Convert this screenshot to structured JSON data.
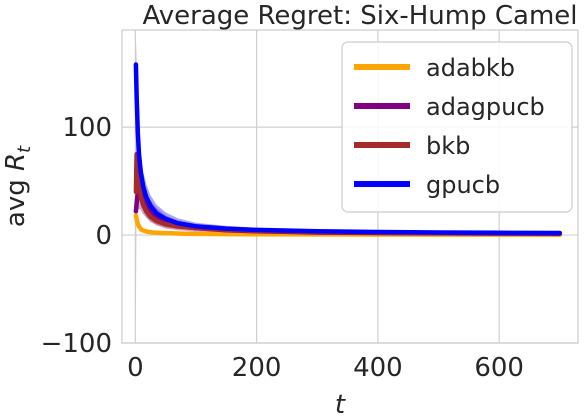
{
  "chart_data": {
    "type": "line",
    "title": "Average Regret: Six-Hump Camel",
    "xlabel": "t",
    "ylabel": "avg R_t",
    "xlim": [
      -22,
      730
    ],
    "ylim": [
      -100,
      190
    ],
    "xticks": [
      0,
      200,
      400,
      600
    ],
    "yticks": [
      -100,
      0,
      100
    ],
    "xtick_labels": [
      "0",
      "200",
      "400",
      "600"
    ],
    "ytick_labels": [
      "−100",
      "0",
      "100"
    ],
    "grid": true,
    "legend_position": "top-right",
    "series": [
      {
        "name": "adabkb",
        "color": "#FFA500",
        "x": [
          1,
          3,
          6,
          10,
          15,
          20,
          30,
          40,
          60,
          80,
          100,
          150,
          200,
          300,
          400,
          500,
          600,
          700
        ],
        "y": [
          18,
          12,
          8,
          5,
          4,
          3,
          2.4,
          2,
          1.6,
          1.3,
          1.1,
          0.9,
          0.8,
          0.6,
          0.5,
          0.45,
          0.4,
          0.35
        ],
        "band": [
          3,
          2,
          1.5,
          1,
          0.8,
          0.6,
          0.5,
          0.4,
          0.3,
          0.3,
          0.2,
          0.2,
          0.2,
          0.2,
          0.1,
          0.1,
          0.1,
          0.1
        ]
      },
      {
        "name": "adagpucb",
        "color": "#800080",
        "x": [
          1,
          3,
          5,
          8,
          12,
          18,
          25,
          35,
          50,
          70,
          100,
          150,
          200,
          300,
          400,
          500,
          600,
          700
        ],
        "y": [
          22,
          35,
          42,
          40,
          34,
          28,
          22,
          17,
          12,
          9,
          6.5,
          4.5,
          3.5,
          2.4,
          1.9,
          1.6,
          1.4,
          1.2
        ],
        "band": [
          15,
          15,
          18,
          16,
          14,
          12,
          10,
          8,
          6,
          4.5,
          3.5,
          2.5,
          2,
          1.2,
          1,
          0.8,
          0.7,
          0.6
        ]
      },
      {
        "name": "bkb",
        "color": "#A52A2A",
        "x": [
          1,
          2,
          4,
          6,
          9,
          13,
          18,
          25,
          35,
          50,
          70,
          100,
          150,
          200,
          300,
          400,
          500,
          600,
          700
        ],
        "y": [
          40,
          75,
          55,
          45,
          35,
          28,
          22,
          17,
          13,
          10,
          8,
          6.5,
          5,
          4,
          3,
          2.4,
          2,
          1.8,
          1.6
        ],
        "band": [
          120,
          20,
          12,
          10,
          8,
          6,
          5,
          4,
          3.5,
          3,
          2.5,
          2,
          1.5,
          1.2,
          1,
          0.8,
          0.7,
          0.6,
          0.5
        ]
      },
      {
        "name": "gpucb",
        "color": "#0000FF",
        "x": [
          1,
          2,
          4,
          6,
          9,
          13,
          18,
          25,
          35,
          50,
          70,
          100,
          150,
          200,
          300,
          400,
          500,
          600,
          700
        ],
        "y": [
          158,
          130,
          95,
          75,
          58,
          45,
          35,
          27,
          20,
          15,
          11,
          8,
          6,
          4.8,
          3.5,
          2.8,
          2.4,
          2.1,
          1.9
        ],
        "band": [
          28,
          25,
          22,
          18,
          16,
          14,
          12,
          10,
          8,
          6,
          4.5,
          3.5,
          2.5,
          2,
          1.5,
          1.2,
          1,
          0.9,
          0.8
        ]
      }
    ]
  }
}
